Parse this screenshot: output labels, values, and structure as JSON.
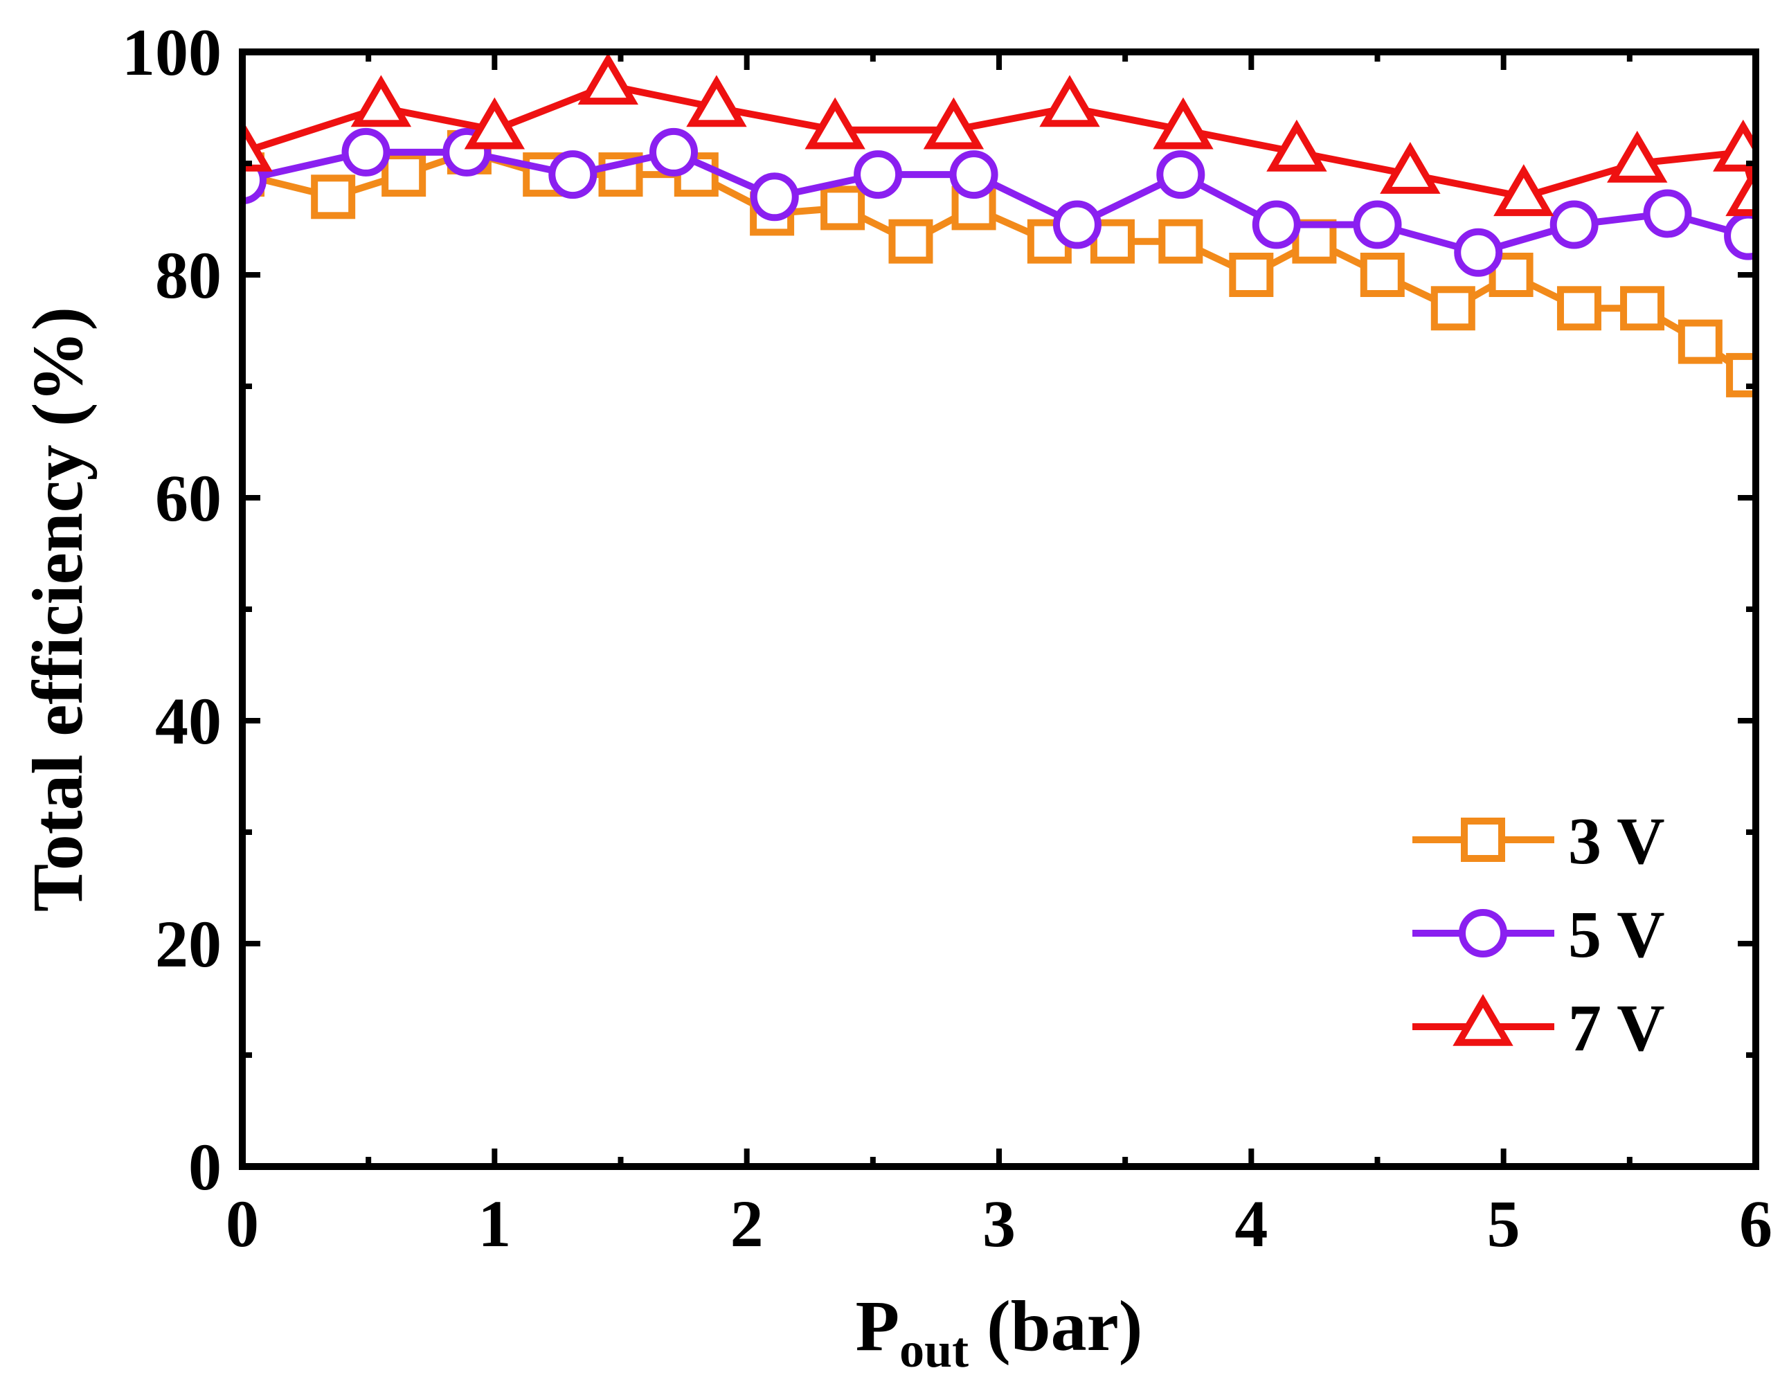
{
  "chart_data": {
    "type": "line",
    "title": "",
    "xlabel": "P",
    "xlabel_sub": "out",
    "xlabel_suffix": " (bar)",
    "ylabel": "Total efficiency (%)",
    "xlim": [
      0,
      6
    ],
    "ylim": [
      0,
      100
    ],
    "x_ticks": [
      "0",
      "1",
      "2",
      "3",
      "4",
      "5",
      "6"
    ],
    "y_ticks": [
      "0",
      "20",
      "40",
      "60",
      "80",
      "100"
    ],
    "grid": false,
    "legend_position": "bottom-right",
    "series": [
      {
        "name": "3 V",
        "color": "#f28a1a",
        "marker": "square",
        "x": [
          0.0,
          0.36,
          0.64,
          0.9,
          1.2,
          1.5,
          1.8,
          2.1,
          2.38,
          2.65,
          2.9,
          3.2,
          3.45,
          3.72,
          4.0,
          4.25,
          4.52,
          4.8,
          5.03,
          5.3,
          5.55,
          5.78,
          5.97
        ],
        "y": [
          89,
          87,
          89,
          91,
          89,
          89,
          89,
          85.5,
          86,
          83,
          86,
          83,
          83,
          83,
          80,
          83,
          80,
          77,
          80,
          77,
          77,
          74,
          71
        ]
      },
      {
        "name": "5 V",
        "color": "#8a1ff0",
        "marker": "circle",
        "x": [
          0.0,
          0.49,
          0.89,
          1.31,
          1.71,
          2.11,
          2.52,
          2.9,
          3.31,
          3.72,
          4.1,
          4.5,
          4.9,
          5.28,
          5.65,
          5.97
        ],
        "y": [
          88.5,
          91,
          91,
          89,
          91,
          87,
          89,
          89,
          84.5,
          89,
          84.5,
          84.5,
          82,
          84.5,
          85.5,
          83.5
        ]
      },
      {
        "name": "7 V",
        "color": "#ee1111",
        "marker": "triangle",
        "x": [
          0.0,
          0.55,
          1.0,
          1.45,
          1.88,
          2.35,
          2.82,
          3.28,
          3.73,
          4.18,
          4.63,
          5.08,
          5.53,
          5.95,
          6.0
        ],
        "y": [
          91,
          95,
          93,
          97,
          95,
          93,
          93,
          95,
          93,
          91,
          89,
          87,
          90,
          91,
          87
        ]
      }
    ]
  }
}
